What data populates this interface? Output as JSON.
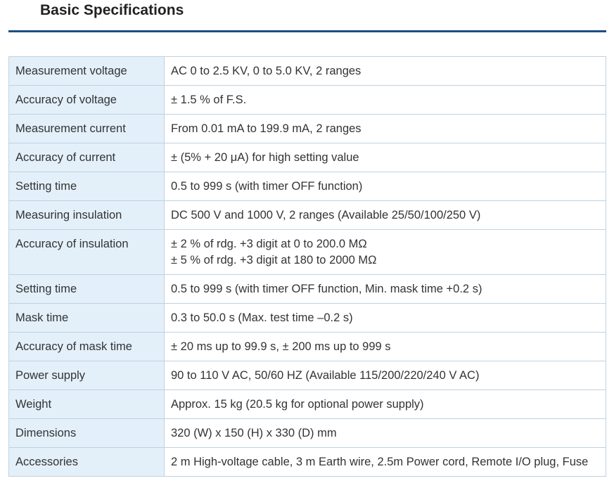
{
  "page": {
    "title": "Basic Specifications"
  },
  "specs": [
    {
      "label": "Measurement voltage",
      "values": [
        "AC 0 to 2.5 KV, 0 to 5.0 KV, 2 ranges"
      ]
    },
    {
      "label": "Accuracy of voltage",
      "values": [
        "± 1.5 % of F.S."
      ]
    },
    {
      "label": "Measurement current",
      "values": [
        "From 0.01 mA to 199.9 mA, 2 ranges"
      ]
    },
    {
      "label": "Accuracy of current",
      "values": [
        "± (5% + 20 μA) for high setting value"
      ]
    },
    {
      "label": "Setting time",
      "values": [
        "0.5 to 999 s (with timer OFF function)"
      ]
    },
    {
      "label": "Measuring insulation",
      "values": [
        "DC 500 V and 1000 V, 2 ranges (Available 25/50/100/250 V)"
      ]
    },
    {
      "label": "Accuracy of insulation",
      "values": [
        "± 2 % of rdg. +3 digit at 0 to 200.0 MΩ",
        "± 5 % of rdg. +3 digit at 180 to 2000 MΩ"
      ]
    },
    {
      "label": "Setting time",
      "values": [
        "0.5 to 999 s (with timer OFF function, Min. mask time +0.2 s)"
      ]
    },
    {
      "label": "Mask time",
      "values": [
        "0.3 to 50.0 s (Max. test time –0.2 s)"
      ]
    },
    {
      "label": "Accuracy of mask time",
      "values": [
        "± 20 ms up to 99.9 s, ± 200 ms up to 999 s"
      ]
    },
    {
      "label": "Power supply",
      "values": [
        "90 to 110 V AC, 50/60 HZ (Available 115/200/220/240 V AC)"
      ]
    },
    {
      "label": "Weight",
      "values": [
        "Approx. 15 kg (20.5 kg for optional power supply)"
      ]
    },
    {
      "label": "Dimensions",
      "values": [
        "320 (W) x 150 (H) x 330 (D) mm"
      ]
    },
    {
      "label": "Accessories",
      "values": [
        "2 m High-voltage cable, 3 m Earth wire, 2.5m Power cord, Remote I/O plug, Fuse"
      ]
    }
  ],
  "colors": {
    "accent_rule": "#1f4e85",
    "label_cell_bg": "#e3f0fa",
    "border": "#bfd2e0"
  }
}
